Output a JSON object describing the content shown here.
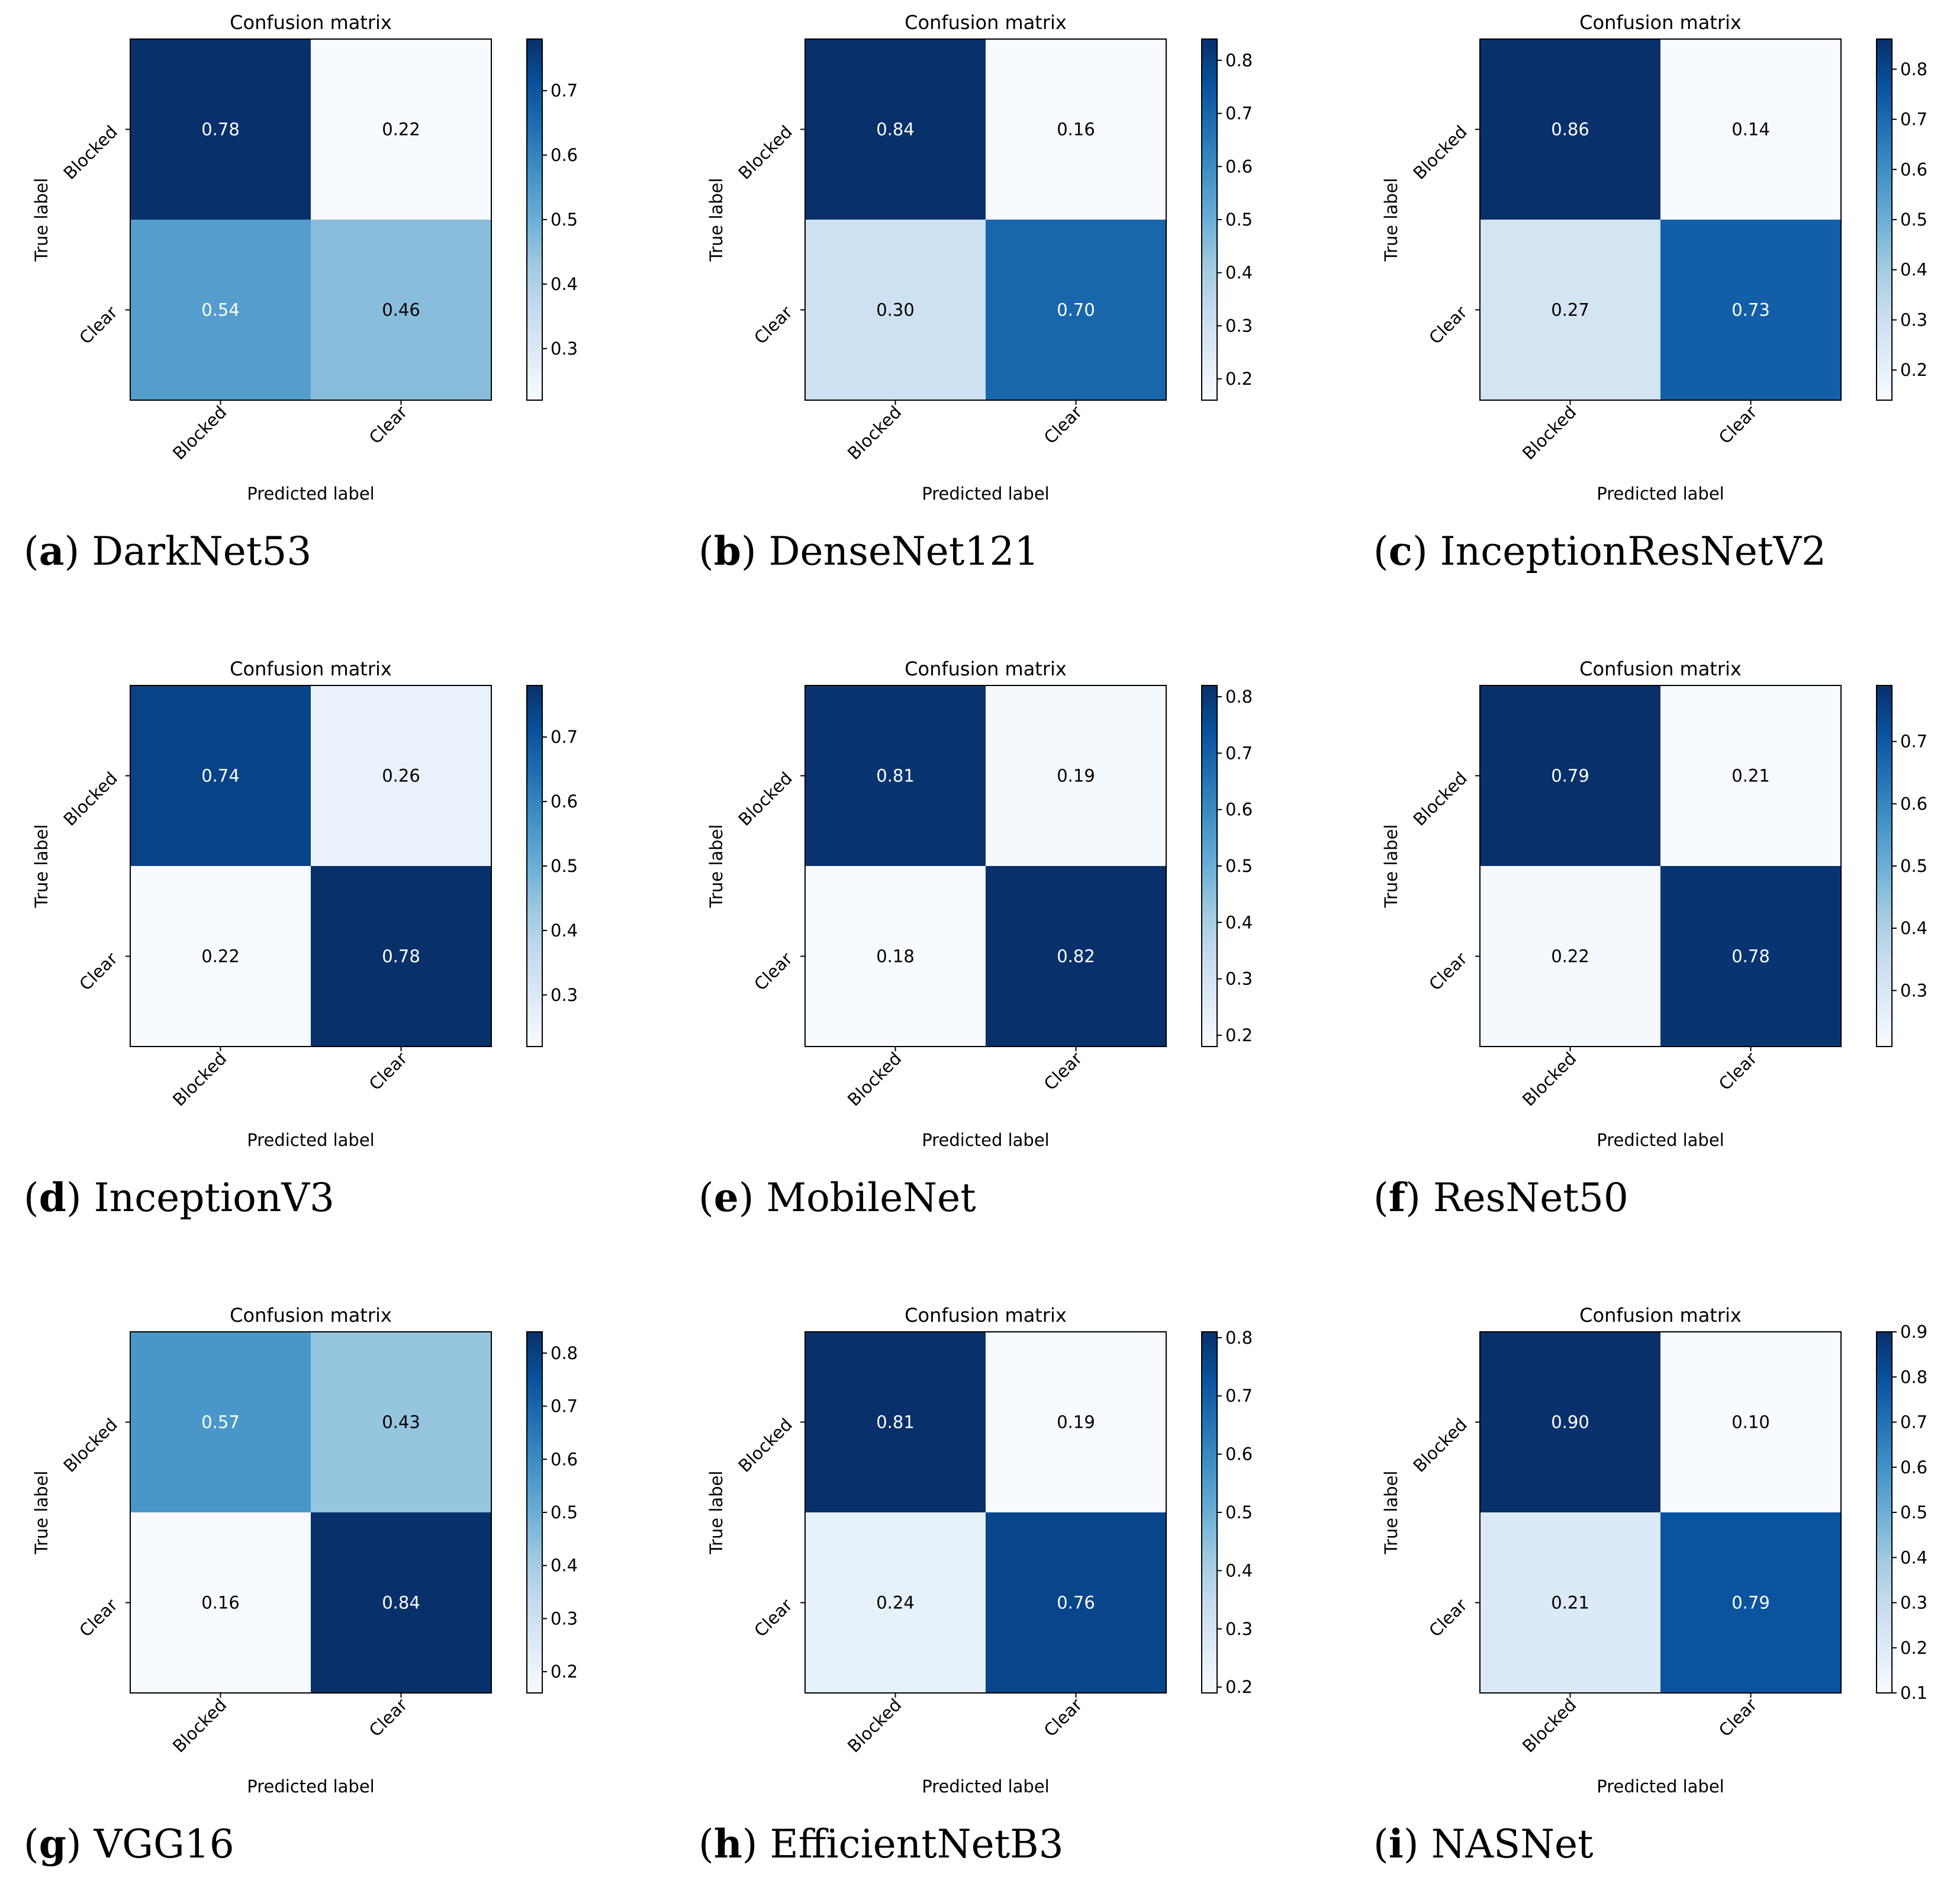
{
  "figure": {
    "rows": 3,
    "cols": 3,
    "caption_style": "(letter) name"
  },
  "chart_data": [
    {
      "type": "heatmap",
      "title": "Confusion matrix",
      "xlabel": "Predicted label",
      "ylabel": "True label",
      "categories_x": [
        "Blocked",
        "Clear"
      ],
      "categories_y": [
        "Blocked",
        "Clear"
      ],
      "values": [
        [
          0.78,
          0.22
        ],
        [
          0.54,
          0.46
        ]
      ],
      "cell_labels": [
        [
          "0.78",
          "0.22"
        ],
        [
          "0.54",
          "0.46"
        ]
      ],
      "colormap": "Blues",
      "colorbar": {
        "min": 0.22,
        "max": 0.78,
        "ticks": [
          "0.3",
          "0.4",
          "0.5",
          "0.6",
          "0.7"
        ]
      },
      "caption_letter": "a",
      "caption_name": "DarkNet53"
    },
    {
      "type": "heatmap",
      "title": "Confusion matrix",
      "xlabel": "Predicted label",
      "ylabel": "True label",
      "categories_x": [
        "Blocked",
        "Clear"
      ],
      "categories_y": [
        "Blocked",
        "Clear"
      ],
      "values": [
        [
          0.84,
          0.16
        ],
        [
          0.3,
          0.7
        ]
      ],
      "cell_labels": [
        [
          "0.84",
          "0.16"
        ],
        [
          "0.30",
          "0.70"
        ]
      ],
      "colormap": "Blues",
      "colorbar": {
        "min": 0.16,
        "max": 0.84,
        "ticks": [
          "0.2",
          "0.3",
          "0.4",
          "0.5",
          "0.6",
          "0.7",
          "0.8"
        ]
      },
      "caption_letter": "b",
      "caption_name": "DenseNet121"
    },
    {
      "type": "heatmap",
      "title": "Confusion matrix",
      "xlabel": "Predicted label",
      "ylabel": "True label",
      "categories_x": [
        "Blocked",
        "Clear"
      ],
      "categories_y": [
        "Blocked",
        "Clear"
      ],
      "values": [
        [
          0.86,
          0.14
        ],
        [
          0.27,
          0.73
        ]
      ],
      "cell_labels": [
        [
          "0.86",
          "0.14"
        ],
        [
          "0.27",
          "0.73"
        ]
      ],
      "colormap": "Blues",
      "colorbar": {
        "min": 0.14,
        "max": 0.86,
        "ticks": [
          "0.2",
          "0.3",
          "0.4",
          "0.5",
          "0.6",
          "0.7",
          "0.8"
        ]
      },
      "caption_letter": "c",
      "caption_name": "InceptionResNetV2"
    },
    {
      "type": "heatmap",
      "title": "Confusion matrix",
      "xlabel": "Predicted label",
      "ylabel": "True label",
      "categories_x": [
        "Blocked",
        "Clear"
      ],
      "categories_y": [
        "Blocked",
        "Clear"
      ],
      "values": [
        [
          0.74,
          0.26
        ],
        [
          0.22,
          0.78
        ]
      ],
      "cell_labels": [
        [
          "0.74",
          "0.26"
        ],
        [
          "0.22",
          "0.78"
        ]
      ],
      "colormap": "Blues",
      "colorbar": {
        "min": 0.22,
        "max": 0.78,
        "ticks": [
          "0.3",
          "0.4",
          "0.5",
          "0.6",
          "0.7"
        ]
      },
      "caption_letter": "d",
      "caption_name": "InceptionV3"
    },
    {
      "type": "heatmap",
      "title": "Confusion matrix",
      "xlabel": "Predicted label",
      "ylabel": "True label",
      "categories_x": [
        "Blocked",
        "Clear"
      ],
      "categories_y": [
        "Blocked",
        "Clear"
      ],
      "values": [
        [
          0.81,
          0.19
        ],
        [
          0.18,
          0.82
        ]
      ],
      "cell_labels": [
        [
          "0.81",
          "0.19"
        ],
        [
          "0.18",
          "0.82"
        ]
      ],
      "colormap": "Blues",
      "colorbar": {
        "min": 0.18,
        "max": 0.82,
        "ticks": [
          "0.2",
          "0.3",
          "0.4",
          "0.5",
          "0.6",
          "0.7",
          "0.8"
        ]
      },
      "caption_letter": "e",
      "caption_name": "MobileNet"
    },
    {
      "type": "heatmap",
      "title": "Confusion matrix",
      "xlabel": "Predicted label",
      "ylabel": "True label",
      "categories_x": [
        "Blocked",
        "Clear"
      ],
      "categories_y": [
        "Blocked",
        "Clear"
      ],
      "values": [
        [
          0.79,
          0.21
        ],
        [
          0.22,
          0.78
        ]
      ],
      "cell_labels": [
        [
          "0.79",
          "0.21"
        ],
        [
          "0.22",
          "0.78"
        ]
      ],
      "colormap": "Blues",
      "colorbar": {
        "min": 0.21,
        "max": 0.79,
        "ticks": [
          "0.3",
          "0.4",
          "0.5",
          "0.6",
          "0.7"
        ]
      },
      "caption_letter": "f",
      "caption_name": "ResNet50"
    },
    {
      "type": "heatmap",
      "title": "Confusion matrix",
      "xlabel": "Predicted label",
      "ylabel": "True label",
      "categories_x": [
        "Blocked",
        "Clear"
      ],
      "categories_y": [
        "Blocked",
        "Clear"
      ],
      "values": [
        [
          0.57,
          0.43
        ],
        [
          0.16,
          0.84
        ]
      ],
      "cell_labels": [
        [
          "0.57",
          "0.43"
        ],
        [
          "0.16",
          "0.84"
        ]
      ],
      "colormap": "Blues",
      "colorbar": {
        "min": 0.16,
        "max": 0.84,
        "ticks": [
          "0.2",
          "0.3",
          "0.4",
          "0.5",
          "0.6",
          "0.7",
          "0.8"
        ]
      },
      "caption_letter": "g",
      "caption_name": "VGG16"
    },
    {
      "type": "heatmap",
      "title": "Confusion matrix",
      "xlabel": "Predicted label",
      "ylabel": "True label",
      "categories_x": [
        "Blocked",
        "Clear"
      ],
      "categories_y": [
        "Blocked",
        "Clear"
      ],
      "values": [
        [
          0.81,
          0.19
        ],
        [
          0.24,
          0.76
        ]
      ],
      "cell_labels": [
        [
          "0.81",
          "0.19"
        ],
        [
          "0.24",
          "0.76"
        ]
      ],
      "colormap": "Blues",
      "colorbar": {
        "min": 0.19,
        "max": 0.81,
        "ticks": [
          "0.2",
          "0.3",
          "0.4",
          "0.5",
          "0.6",
          "0.7",
          "0.8"
        ]
      },
      "caption_letter": "h",
      "caption_name": "EfficientNetB3"
    },
    {
      "type": "heatmap",
      "title": "Confusion matrix",
      "xlabel": "Predicted label",
      "ylabel": "True label",
      "categories_x": [
        "Blocked",
        "Clear"
      ],
      "categories_y": [
        "Blocked",
        "Clear"
      ],
      "values": [
        [
          0.9,
          0.1
        ],
        [
          0.21,
          0.79
        ]
      ],
      "cell_labels": [
        [
          "0.90",
          "0.10"
        ],
        [
          "0.21",
          "0.79"
        ]
      ],
      "colormap": "Blues",
      "colorbar": {
        "min": 0.1,
        "max": 0.9,
        "ticks": [
          "0.1",
          "0.2",
          "0.3",
          "0.4",
          "0.5",
          "0.6",
          "0.7",
          "0.8",
          "0.9"
        ]
      },
      "caption_letter": "i",
      "caption_name": "NASNet"
    }
  ]
}
